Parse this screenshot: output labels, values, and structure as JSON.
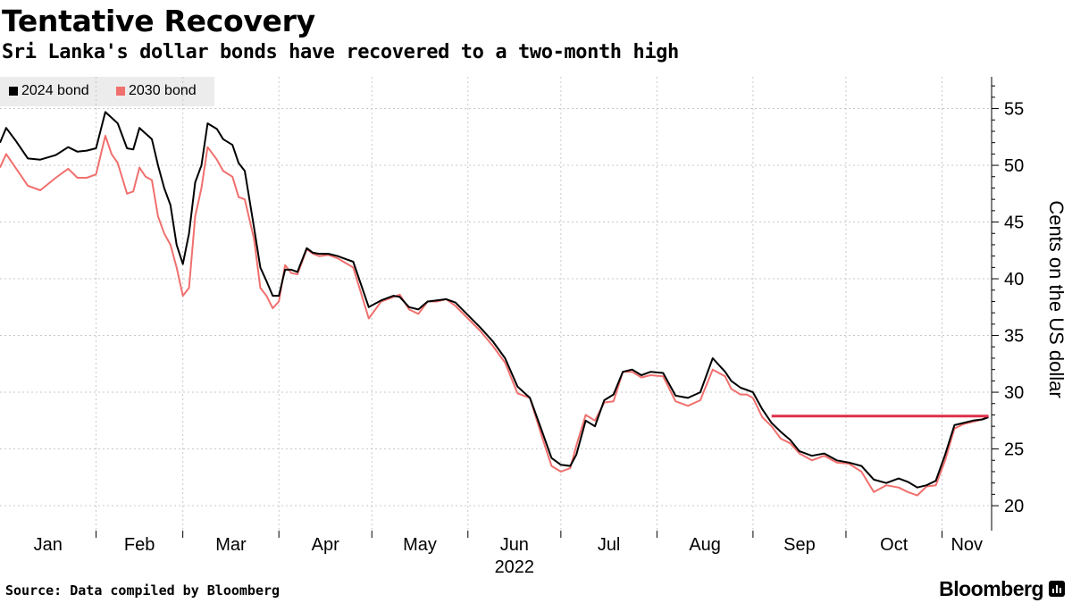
{
  "header": {
    "title": "Tentative Recovery",
    "subtitle": "Sri Lanka's dollar bonds have recovered to a two-month high"
  },
  "footer": {
    "source": "Source: Data compiled by Bloomberg",
    "brand": "Bloomberg"
  },
  "colors": {
    "series_2024": "#000000",
    "series_2030": "#f0706e",
    "reference_line": "#e0304a",
    "grid": "#c8c8c8",
    "legend_bg": "#ececec"
  },
  "chart_data": {
    "type": "line",
    "title": "Tentative Recovery",
    "subtitle": "Sri Lanka's dollar bonds have recovered to a two-month high",
    "xlabel": "2022",
    "ylabel": "Cents on the US dollar",
    "x_tick_labels": [
      "Jan",
      "Feb",
      "Mar",
      "Apr",
      "May",
      "Jun",
      "Jul",
      "Aug",
      "Sep",
      "Oct",
      "Nov"
    ],
    "x_year_label": "2022",
    "y_ticks": [
      20,
      25,
      30,
      35,
      40,
      45,
      50,
      55
    ],
    "ylim": [
      17.8,
      57.8
    ],
    "xlim": [
      "2022-01-01",
      "2022-11-17"
    ],
    "grid": true,
    "legend_position": "top-left",
    "reference_line": {
      "value": 27.9,
      "from": "2022-09-07",
      "to": "2022-11-16"
    },
    "series": [
      {
        "name": "2024 bond",
        "color": "#000000",
        "x": [
          "2022-01-01",
          "2022-01-03",
          "2022-01-06",
          "2022-01-10",
          "2022-01-14",
          "2022-01-19",
          "2022-01-23",
          "2022-01-26",
          "2022-01-29",
          "2022-02-01",
          "2022-02-04",
          "2022-02-06",
          "2022-02-08",
          "2022-02-11",
          "2022-02-13",
          "2022-02-15",
          "2022-02-17",
          "2022-02-19",
          "2022-02-21",
          "2022-02-23",
          "2022-02-25",
          "2022-02-27",
          "2022-03-01",
          "2022-03-03",
          "2022-03-05",
          "2022-03-07",
          "2022-03-09",
          "2022-03-12",
          "2022-03-14",
          "2022-03-17",
          "2022-03-19",
          "2022-03-21",
          "2022-03-24",
          "2022-03-26",
          "2022-03-28",
          "2022-03-30",
          "2022-04-01",
          "2022-04-03",
          "2022-04-05",
          "2022-04-07",
          "2022-04-10",
          "2022-04-12",
          "2022-04-14",
          "2022-04-17",
          "2022-04-20",
          "2022-04-25",
          "2022-04-30",
          "2022-05-04",
          "2022-05-08",
          "2022-05-10",
          "2022-05-13",
          "2022-05-16",
          "2022-05-19",
          "2022-05-22",
          "2022-05-25",
          "2022-05-28",
          "2022-06-01",
          "2022-06-05",
          "2022-06-09",
          "2022-06-13",
          "2022-06-17",
          "2022-06-21",
          "2022-06-25",
          "2022-06-28",
          "2022-07-01",
          "2022-07-04",
          "2022-07-06",
          "2022-07-09",
          "2022-07-12",
          "2022-07-15",
          "2022-07-18",
          "2022-07-21",
          "2022-07-24",
          "2022-07-27",
          "2022-07-30",
          "2022-08-03",
          "2022-08-07",
          "2022-08-11",
          "2022-08-15",
          "2022-08-19",
          "2022-08-23",
          "2022-08-25",
          "2022-08-28",
          "2022-08-30",
          "2022-09-01",
          "2022-09-04",
          "2022-09-07",
          "2022-09-10",
          "2022-09-13",
          "2022-09-16",
          "2022-09-20",
          "2022-09-24",
          "2022-09-28",
          "2022-10-02",
          "2022-10-06",
          "2022-10-10",
          "2022-10-14",
          "2022-10-18",
          "2022-10-21",
          "2022-10-24",
          "2022-10-27",
          "2022-10-30",
          "2022-11-02",
          "2022-11-05",
          "2022-11-08",
          "2022-11-11",
          "2022-11-14",
          "2022-11-16"
        ],
        "values": [
          52.0,
          53.3,
          52.2,
          50.6,
          50.5,
          50.9,
          51.6,
          51.2,
          51.3,
          51.5,
          54.7,
          54.2,
          53.7,
          51.5,
          51.4,
          53.3,
          52.8,
          52.3,
          50.0,
          48.0,
          46.5,
          43.0,
          41.3,
          44.0,
          48.5,
          50.0,
          53.7,
          53.2,
          52.3,
          51.8,
          50.2,
          49.5,
          44.5,
          41.0,
          39.8,
          38.5,
          38.5,
          40.8,
          40.8,
          40.6,
          42.7,
          42.3,
          42.2,
          42.2,
          42.0,
          41.5,
          37.5,
          38.1,
          38.5,
          38.4,
          37.5,
          37.3,
          38.0,
          38.1,
          38.2,
          37.9,
          36.8,
          35.7,
          34.5,
          33.0,
          30.5,
          29.5,
          26.5,
          24.2,
          23.6,
          23.5,
          24.5,
          27.5,
          27.0,
          29.3,
          29.8,
          31.8,
          32.0,
          31.5,
          31.8,
          31.7,
          29.7,
          29.5,
          30.0,
          33.0,
          31.8,
          31.0,
          30.4,
          30.2,
          30.0,
          28.5,
          27.3,
          26.5,
          25.8,
          24.8,
          24.4,
          24.6,
          24.0,
          23.8,
          23.5,
          22.3,
          22.0,
          22.4,
          22.1,
          21.6,
          21.8,
          22.2,
          24.5,
          27.1,
          27.3,
          27.5,
          27.6,
          27.8
        ]
      },
      {
        "name": "2030 bond",
        "color": "#f0706e",
        "x": [
          "2022-01-01",
          "2022-01-03",
          "2022-01-06",
          "2022-01-10",
          "2022-01-14",
          "2022-01-19",
          "2022-01-23",
          "2022-01-26",
          "2022-01-29",
          "2022-02-01",
          "2022-02-04",
          "2022-02-06",
          "2022-02-08",
          "2022-02-11",
          "2022-02-13",
          "2022-02-15",
          "2022-02-17",
          "2022-02-19",
          "2022-02-21",
          "2022-02-23",
          "2022-02-25",
          "2022-02-27",
          "2022-03-01",
          "2022-03-03",
          "2022-03-05",
          "2022-03-07",
          "2022-03-09",
          "2022-03-12",
          "2022-03-14",
          "2022-03-17",
          "2022-03-19",
          "2022-03-21",
          "2022-03-24",
          "2022-03-26",
          "2022-03-28",
          "2022-03-30",
          "2022-04-01",
          "2022-04-03",
          "2022-04-05",
          "2022-04-07",
          "2022-04-10",
          "2022-04-12",
          "2022-04-14",
          "2022-04-17",
          "2022-04-20",
          "2022-04-25",
          "2022-04-30",
          "2022-05-04",
          "2022-05-08",
          "2022-05-10",
          "2022-05-13",
          "2022-05-16",
          "2022-05-19",
          "2022-05-22",
          "2022-05-25",
          "2022-05-28",
          "2022-06-01",
          "2022-06-05",
          "2022-06-09",
          "2022-06-13",
          "2022-06-17",
          "2022-06-21",
          "2022-06-25",
          "2022-06-28",
          "2022-07-01",
          "2022-07-04",
          "2022-07-06",
          "2022-07-09",
          "2022-07-12",
          "2022-07-15",
          "2022-07-18",
          "2022-07-21",
          "2022-07-24",
          "2022-07-27",
          "2022-07-30",
          "2022-08-03",
          "2022-08-07",
          "2022-08-11",
          "2022-08-15",
          "2022-08-19",
          "2022-08-23",
          "2022-08-25",
          "2022-08-28",
          "2022-08-30",
          "2022-09-01",
          "2022-09-04",
          "2022-09-07",
          "2022-09-10",
          "2022-09-13",
          "2022-09-16",
          "2022-09-20",
          "2022-09-24",
          "2022-09-28",
          "2022-10-02",
          "2022-10-06",
          "2022-10-10",
          "2022-10-14",
          "2022-10-18",
          "2022-10-21",
          "2022-10-24",
          "2022-10-27",
          "2022-10-30",
          "2022-11-02",
          "2022-11-05",
          "2022-11-08",
          "2022-11-11",
          "2022-11-14",
          "2022-11-16"
        ],
        "values": [
          49.8,
          51.0,
          49.8,
          48.2,
          47.8,
          48.9,
          49.7,
          48.9,
          48.9,
          49.2,
          52.6,
          51.0,
          50.2,
          47.5,
          47.7,
          49.8,
          49.0,
          48.7,
          45.5,
          44.0,
          43.0,
          41.0,
          38.5,
          39.2,
          45.5,
          48.0,
          51.6,
          50.5,
          49.5,
          49.0,
          47.2,
          47.0,
          43.5,
          39.2,
          38.5,
          37.4,
          38.0,
          41.2,
          40.5,
          40.4,
          42.6,
          42.2,
          42.0,
          42.1,
          41.8,
          41.0,
          36.5,
          38.0,
          38.4,
          38.6,
          37.3,
          36.9,
          38.0,
          38.0,
          38.2,
          37.6,
          36.5,
          35.4,
          34.1,
          32.6,
          29.9,
          29.5,
          26.0,
          23.5,
          23.0,
          23.3,
          25.3,
          28.0,
          27.5,
          29.1,
          29.2,
          31.8,
          31.8,
          31.3,
          31.5,
          31.4,
          29.2,
          28.8,
          29.3,
          32.0,
          31.4,
          30.3,
          29.8,
          29.8,
          29.5,
          27.8,
          27.0,
          25.9,
          25.5,
          24.6,
          24.0,
          24.4,
          23.8,
          23.7,
          23.0,
          21.2,
          21.8,
          21.6,
          21.2,
          20.9,
          21.7,
          21.8,
          24.0,
          26.8,
          27.2,
          27.4,
          27.6,
          27.9
        ]
      }
    ]
  }
}
